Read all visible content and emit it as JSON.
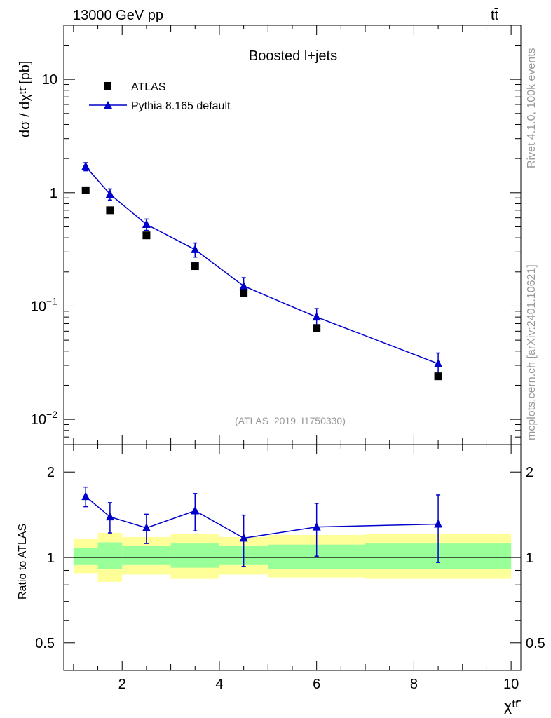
{
  "header": {
    "energy_label": "13000 GeV pp",
    "process_label": "tt̄"
  },
  "side_labels": {
    "rivet": "Rivet 4.1.0,  100k events",
    "source": "mcplots.cern.ch [arXiv:2401.10621]"
  },
  "colors": {
    "mc": "#0000cc",
    "data": "#000000",
    "band_inner": "#99ff99",
    "band_outer": "#ffff99",
    "gray_text": "#999999"
  },
  "chart_data": [
    {
      "type": "scatter",
      "panel": "main",
      "title": "Boosted l+jets",
      "analysis_tag": "(ATLAS_2019_I1750330)",
      "ylabel": "dσ / dχᵗᵗ̄ [pb]",
      "yscale": "log",
      "xlim": [
        0.8,
        10.2
      ],
      "ylim": [
        0.006,
        30
      ],
      "x_ticks": [
        2,
        4,
        6,
        8,
        10
      ],
      "y_ticks": [
        {
          "value": 0.01,
          "base": "10",
          "exp": "−2"
        },
        {
          "value": 0.1,
          "base": "10",
          "exp": "−1"
        },
        {
          "value": 1,
          "base": "1",
          "exp": ""
        },
        {
          "value": 10,
          "base": "10",
          "exp": ""
        }
      ],
      "legend": [
        {
          "label": "ATLAS",
          "marker": "square"
        },
        {
          "label": "Pythia 8.165 default",
          "marker": "triangle"
        }
      ],
      "series": [
        {
          "name": "ATLAS",
          "x": [
            1.25,
            1.75,
            2.5,
            3.5,
            4.5,
            6.0,
            8.5
          ],
          "y": [
            1.05,
            0.7,
            0.42,
            0.225,
            0.13,
            0.064,
            0.024
          ]
        },
        {
          "name": "Pythia 8.165 default",
          "x": [
            1.25,
            1.75,
            2.5,
            3.5,
            4.5,
            6.0,
            8.5
          ],
          "y": [
            1.7,
            0.97,
            0.525,
            0.315,
            0.15,
            0.08,
            0.031
          ],
          "yerr": [
            0.14,
            0.11,
            0.06,
            0.045,
            0.028,
            0.015,
            0.0075
          ]
        }
      ]
    },
    {
      "type": "scatter",
      "panel": "ratio",
      "ylabel": "Ratio to ATLAS",
      "xlabel": "χᵗᵗ̄",
      "yscale": "log",
      "xlim": [
        0.8,
        10.2
      ],
      "ylim": [
        0.4,
        2.5
      ],
      "x_ticks": [
        2,
        4,
        6,
        8,
        10
      ],
      "y_ticks": [
        0.5,
        1,
        2
      ],
      "bins": [
        {
          "lo": 1.0,
          "hi": 1.5,
          "inner": [
            0.94,
            1.08
          ],
          "outer": [
            0.88,
            1.16
          ]
        },
        {
          "lo": 1.5,
          "hi": 2.0,
          "inner": [
            0.91,
            1.13
          ],
          "outer": [
            0.82,
            1.22
          ]
        },
        {
          "lo": 2.0,
          "hi": 3.0,
          "inner": [
            0.94,
            1.1
          ],
          "outer": [
            0.87,
            1.18
          ]
        },
        {
          "lo": 3.0,
          "hi": 4.0,
          "inner": [
            0.92,
            1.12
          ],
          "outer": [
            0.84,
            1.21
          ]
        },
        {
          "lo": 4.0,
          "hi": 5.0,
          "inner": [
            0.94,
            1.1
          ],
          "outer": [
            0.87,
            1.18
          ]
        },
        {
          "lo": 5.0,
          "hi": 7.0,
          "inner": [
            0.91,
            1.11
          ],
          "outer": [
            0.85,
            1.2
          ]
        },
        {
          "lo": 7.0,
          "hi": 10.0,
          "inner": [
            0.91,
            1.12
          ],
          "outer": [
            0.84,
            1.21
          ]
        }
      ],
      "series": [
        {
          "name": "Pythia 8.165 default",
          "x": [
            1.25,
            1.75,
            2.5,
            3.5,
            4.5,
            6.0,
            8.5
          ],
          "y": [
            1.64,
            1.39,
            1.27,
            1.46,
            1.17,
            1.28,
            1.31
          ],
          "yerr": [
            0.13,
            0.17,
            0.15,
            0.22,
            0.24,
            0.27,
            0.35
          ]
        }
      ]
    }
  ]
}
